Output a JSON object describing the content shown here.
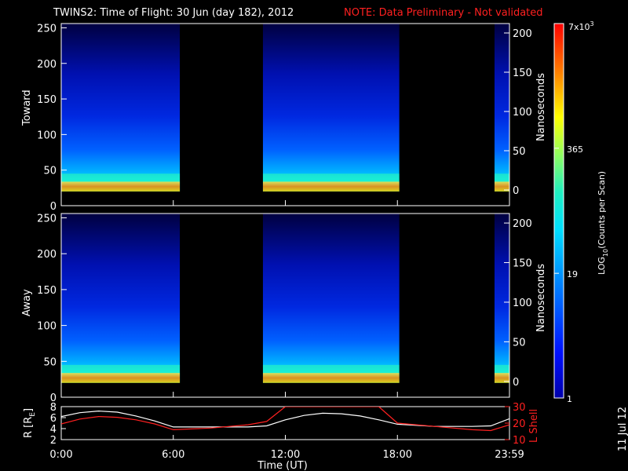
{
  "header": {
    "title": "TWINS2: Time of Flight: 30 Jun (day 182), 2012",
    "note": "NOTE: Data Preliminary - Not validated"
  },
  "footer": {
    "date_stamp": "11 Jul 12"
  },
  "colors": {
    "background": "#000000",
    "note": "#ff2020",
    "r_line": "#ffffff",
    "lshell_line": "#ff2020"
  },
  "chart_data": [
    {
      "type": "heatmap",
      "panel": "toward",
      "ylabel": "Toward",
      "ylabel_right": "Nanoseconds",
      "ylim": [
        0,
        256
      ],
      "yticks": [
        "0",
        "50",
        "100",
        "150",
        "200",
        "250"
      ],
      "ylim_right": [
        -20,
        212
      ],
      "yticks_right": [
        "0",
        "50",
        "100",
        "150",
        "200"
      ],
      "xlim_hours": [
        0,
        24
      ],
      "data_intervals_hours": [
        [
          0.0,
          6.35
        ],
        [
          10.8,
          18.1
        ],
        [
          23.2,
          24.0
        ]
      ],
      "bright_band_counts": [
        20,
        45
      ]
    },
    {
      "type": "heatmap",
      "panel": "away",
      "ylabel": "Away",
      "ylabel_right": "Nanoseconds",
      "ylim": [
        0,
        256
      ],
      "yticks": [
        "0",
        "50",
        "100",
        "150",
        "200",
        "250"
      ],
      "ylim_right": [
        -20,
        212
      ],
      "yticks_right": [
        "0",
        "50",
        "100",
        "150",
        "200"
      ],
      "xlim_hours": [
        0,
        24
      ],
      "data_intervals_hours": [
        [
          0.0,
          6.35
        ],
        [
          10.8,
          18.1
        ],
        [
          23.2,
          24.0
        ]
      ],
      "bright_band_counts": [
        20,
        45
      ]
    },
    {
      "type": "line",
      "panel": "orbit",
      "xlabel": "Time (UT)",
      "xticks": [
        "0:00",
        "6:00",
        "12:00",
        "18:00",
        "23:59"
      ],
      "xtick_hours": [
        0,
        6,
        12,
        18,
        24
      ],
      "ylabel": "R [R",
      "ylabel_sub": "E",
      "ylim": [
        2,
        8
      ],
      "yticks": [
        "2",
        "4",
        "6",
        "8"
      ],
      "ylabel_right": "L Shell",
      "ylim_right": [
        10,
        30
      ],
      "yticks_right": [
        "10",
        "20",
        "30"
      ],
      "series": [
        {
          "name": "R",
          "axis": "left",
          "color": "#ffffff",
          "x": [
            0,
            1,
            2,
            3,
            4,
            5,
            6,
            8,
            10,
            11,
            12,
            13,
            14,
            15,
            16,
            17,
            18,
            20,
            22,
            23,
            24
          ],
          "y": [
            6.2,
            6.9,
            7.2,
            7.0,
            6.3,
            5.4,
            4.3,
            4.3,
            4.3,
            4.5,
            5.6,
            6.4,
            6.8,
            6.7,
            6.3,
            5.6,
            4.8,
            4.4,
            4.4,
            4.5,
            5.8
          ]
        },
        {
          "name": "L Shell",
          "axis": "right",
          "color": "#ff2020",
          "x": [
            0,
            1,
            2,
            3,
            4,
            5,
            6,
            8,
            10,
            11,
            12,
            17,
            17.5,
            18,
            20,
            22,
            23,
            24
          ],
          "y": [
            19.5,
            22.5,
            24,
            23.5,
            22,
            19.5,
            16,
            17,
            19,
            21,
            30,
            30,
            25,
            20,
            18,
            16,
            15.5,
            19
          ]
        }
      ]
    }
  ],
  "colorbar": {
    "label": "LOG",
    "label_sub": "10",
    "label_rest": "(Counts per Scan)",
    "ticks": [
      "1",
      "19",
      "365"
    ],
    "tick_fracs": [
      0.0,
      0.333,
      0.667
    ],
    "top_label": "7x10",
    "top_label_sup": "3"
  }
}
